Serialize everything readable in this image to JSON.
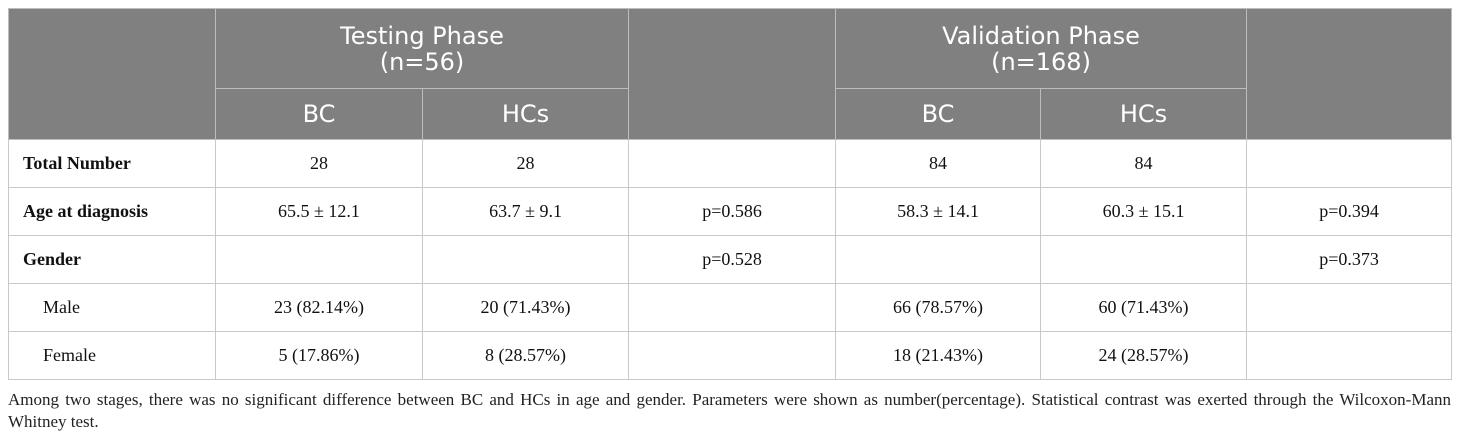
{
  "header": {
    "testing": {
      "line1": "Testing Phase",
      "line2": "(n=56)"
    },
    "validation": {
      "line1": "Validation Phase",
      "line2": "(n=168)"
    },
    "sub": [
      "BC",
      "HCs",
      "BC",
      "HCs"
    ]
  },
  "rows": [
    {
      "label": "Total Number",
      "cells": [
        "28",
        "28",
        "",
        "84",
        "84",
        ""
      ]
    },
    {
      "label": "Age at diagnosis",
      "cells": [
        "65.5 ± 12.1",
        "63.7 ± 9.1",
        "p=0.586",
        "58.3 ± 14.1",
        "60.3 ± 15.1",
        "p=0.394"
      ]
    },
    {
      "label": "Gender",
      "cells": [
        "",
        "",
        "p=0.528",
        "",
        "",
        "p=0.373"
      ]
    },
    {
      "label": "Male",
      "cells": [
        "23 (82.14%)",
        "20 (71.43%)",
        "",
        "66 (78.57%)",
        "60 (71.43%)",
        ""
      ]
    },
    {
      "label": "Female",
      "cells": [
        "5 (17.86%)",
        "8 (28.57%)",
        "",
        "18 (21.43%)",
        "24 (28.57%)",
        ""
      ]
    }
  ],
  "footnote": "Among two stages, there was no significant difference between BC and HCs in age and gender. Parameters were shown as number(percentage). Statistical contrast was exerted through the Wilcoxon-Mann Whitney test."
}
